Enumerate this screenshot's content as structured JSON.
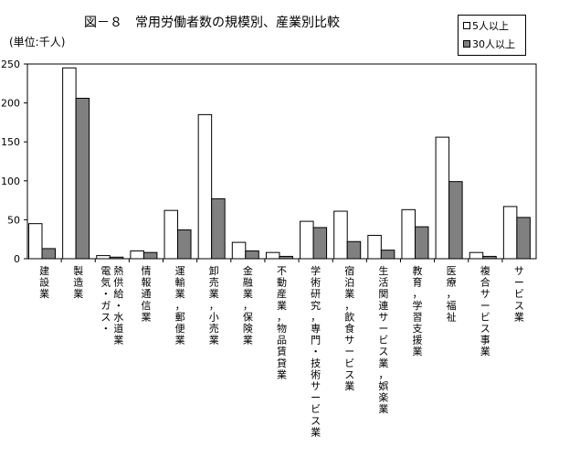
{
  "chart_data": {
    "type": "bar",
    "title": "図－８　常用労働者数の規模別、産業別比較",
    "unit_label": "(単位:千人)",
    "ylim": [
      0,
      250
    ],
    "yticks": [
      0,
      50,
      100,
      150,
      200,
      250
    ],
    "grid": false,
    "legend_position": "top-right",
    "categories": [
      "建設業",
      "製造業",
      "電気・ガス・熱供給・水道業",
      "情報通信業",
      "運輸業，郵便業",
      "卸売業，小売業",
      "金融業，保険業",
      "不動産業，物品賃貸業",
      "学術研究，専門・技術サービス業",
      "宿泊業，飲食サービス業",
      "生活関連サービス業，娯楽業",
      "教育，学習支援業",
      "医療，福祉",
      "複合サービス事業",
      "サービス業"
    ],
    "category_label_columns": [
      [
        "建設業"
      ],
      [
        "製造業"
      ],
      [
        "電気・ガス・",
        "熱供給・水道業"
      ],
      [
        "情報通信業"
      ],
      [
        "運輸業，郵便業"
      ],
      [
        "卸売業，小売業"
      ],
      [
        "金融業，保険業"
      ],
      [
        "不動産業，物品賃貸業"
      ],
      [
        "学術研究，専門・技術サービス業"
      ],
      [
        "宿泊業，飲食サービス業"
      ],
      [
        "生活関連サービス業，娯楽業"
      ],
      [
        "教育，学習支援業"
      ],
      [
        "医療，福祉"
      ],
      [
        "複合サービス事業"
      ],
      [
        "サービス業"
      ]
    ],
    "series": [
      {
        "name": "5人以上",
        "color": "#ffffff",
        "values": [
          45,
          245,
          4,
          10,
          62,
          185,
          21,
          8,
          48,
          61,
          30,
          63,
          156,
          8,
          67
        ]
      },
      {
        "name": "30人以上",
        "color": "#808080",
        "values": [
          13,
          206,
          2,
          8,
          37,
          77,
          10,
          3,
          40,
          22,
          11,
          41,
          99,
          3,
          53
        ]
      }
    ]
  }
}
